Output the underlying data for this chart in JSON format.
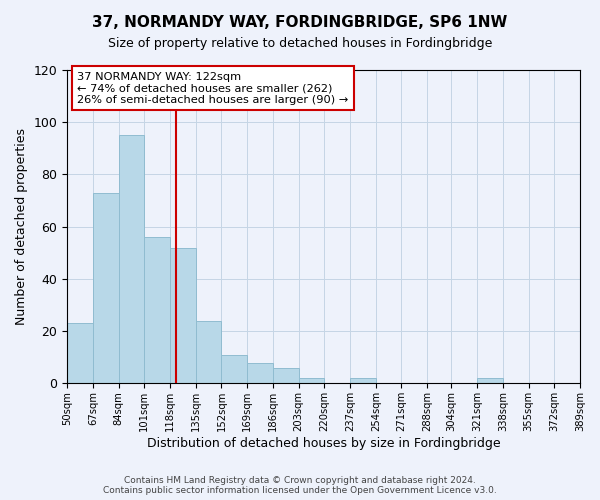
{
  "title": "37, NORMANDY WAY, FORDINGBRIDGE, SP6 1NW",
  "subtitle": "Size of property relative to detached houses in Fordingbridge",
  "xlabel": "Distribution of detached houses by size in Fordingbridge",
  "ylabel": "Number of detached properties",
  "bin_edges": [
    50,
    67,
    84,
    101,
    118,
    135,
    152,
    169,
    186,
    203,
    220,
    237,
    254,
    271,
    288,
    304,
    321,
    338,
    355,
    372,
    389
  ],
  "bin_labels": [
    "50sqm",
    "67sqm",
    "84sqm",
    "101sqm",
    "118sqm",
    "135sqm",
    "152sqm",
    "169sqm",
    "186sqm",
    "203sqm",
    "220sqm",
    "237sqm",
    "254sqm",
    "271sqm",
    "288sqm",
    "304sqm",
    "321sqm",
    "338sqm",
    "355sqm",
    "372sqm",
    "389sqm"
  ],
  "counts": [
    23,
    73,
    95,
    56,
    52,
    24,
    11,
    8,
    6,
    2,
    0,
    2,
    0,
    0,
    0,
    0,
    2,
    0,
    0,
    0
  ],
  "bar_color": "#b8d8e8",
  "bar_edge_color": "#90bcd0",
  "vline_x": 122,
  "vline_color": "#cc0000",
  "ylim": [
    0,
    120
  ],
  "yticks": [
    0,
    20,
    40,
    60,
    80,
    100,
    120
  ],
  "annotation_line1": "37 NORMANDY WAY: 122sqm",
  "annotation_line2": "← 74% of detached houses are smaller (262)",
  "annotation_line3": "26% of semi-detached houses are larger (90) →",
  "annotation_box_color": "#ffffff",
  "annotation_box_edge": "#cc0000",
  "footer_line1": "Contains HM Land Registry data © Crown copyright and database right 2024.",
  "footer_line2": "Contains public sector information licensed under the Open Government Licence v3.0.",
  "background_color": "#eef2fb",
  "title_fontsize": 11,
  "subtitle_fontsize": 9,
  "ylabel_fontsize": 9,
  "xlabel_fontsize": 9
}
